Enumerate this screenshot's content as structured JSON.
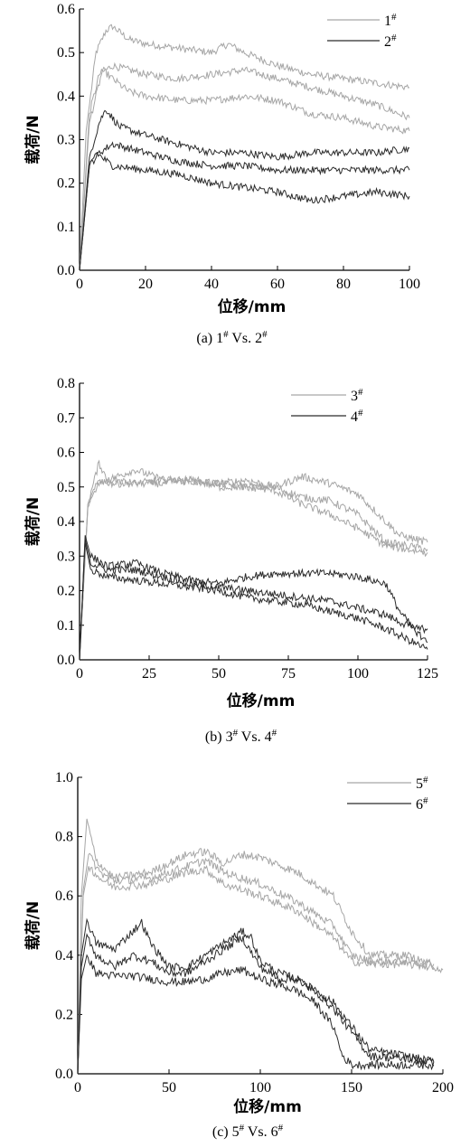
{
  "chart_data": [
    {
      "type": "line",
      "caption_main": "(a) 1",
      "caption_sup1": "#",
      "caption_mid": " Vs. 2",
      "caption_sup2": "#",
      "xlabel": "位移/mm",
      "ylabel": "载荷/N",
      "xlim": [
        0,
        100
      ],
      "ylim": [
        0,
        0.6
      ],
      "xticks": [
        "0",
        "20",
        "40",
        "60",
        "80",
        "100"
      ],
      "yticks": [
        "0.0",
        "0.1",
        "0.2",
        "0.3",
        "0.4",
        "0.5",
        "0.6"
      ],
      "legend_position": "top-right",
      "series": [
        {
          "name": "1",
          "name_sup": "#",
          "color": "#a6a6a6",
          "x": [
            0,
            2,
            5,
            8,
            10,
            15,
            20,
            30,
            40,
            45,
            50,
            60,
            70,
            80,
            90,
            100
          ],
          "y": [
            0,
            0.32,
            0.5,
            0.55,
            0.56,
            0.53,
            0.52,
            0.51,
            0.5,
            0.52,
            0.5,
            0.47,
            0.45,
            0.44,
            0.43,
            0.42
          ]
        },
        {
          "name": "1",
          "color": "#a6a6a6",
          "x": [
            0,
            3,
            6,
            10,
            15,
            20,
            30,
            40,
            50,
            60,
            70,
            80,
            90,
            100
          ],
          "y": [
            0,
            0.36,
            0.45,
            0.47,
            0.46,
            0.45,
            0.44,
            0.45,
            0.46,
            0.44,
            0.42,
            0.4,
            0.38,
            0.35
          ]
        },
        {
          "name": "1",
          "color": "#a6a6a6",
          "x": [
            0,
            3,
            7,
            10,
            15,
            20,
            30,
            40,
            50,
            60,
            70,
            80,
            90,
            100
          ],
          "y": [
            0,
            0.34,
            0.46,
            0.44,
            0.41,
            0.4,
            0.39,
            0.39,
            0.4,
            0.39,
            0.36,
            0.35,
            0.33,
            0.32
          ]
        },
        {
          "name": "2",
          "name_sup": "#",
          "color": "#2b2b2b",
          "x": [
            0,
            3,
            6,
            8,
            12,
            20,
            30,
            40,
            50,
            60,
            70,
            80,
            90,
            100
          ],
          "y": [
            0,
            0.26,
            0.34,
            0.37,
            0.33,
            0.31,
            0.29,
            0.27,
            0.27,
            0.26,
            0.27,
            0.27,
            0.27,
            0.28
          ]
        },
        {
          "name": "2",
          "color": "#2b2b2b",
          "x": [
            0,
            3,
            6,
            10,
            20,
            30,
            40,
            50,
            60,
            70,
            80,
            90,
            100
          ],
          "y": [
            0,
            0.24,
            0.27,
            0.29,
            0.27,
            0.25,
            0.24,
            0.24,
            0.23,
            0.23,
            0.23,
            0.23,
            0.23
          ]
        },
        {
          "name": "2",
          "color": "#2b2b2b",
          "x": [
            0,
            3,
            5,
            10,
            20,
            30,
            40,
            50,
            60,
            70,
            80,
            90,
            100
          ],
          "y": [
            0,
            0.24,
            0.27,
            0.24,
            0.23,
            0.22,
            0.2,
            0.19,
            0.18,
            0.16,
            0.17,
            0.18,
            0.17
          ]
        }
      ]
    },
    {
      "type": "line",
      "caption_main": "(b) 3",
      "caption_sup1": "#",
      "caption_mid": " Vs. 4",
      "caption_sup2": "#",
      "xlabel": "位移/mm",
      "ylabel": "载荷/N",
      "xlim": [
        0,
        125
      ],
      "ylim": [
        0,
        0.8
      ],
      "xticks": [
        "0",
        "25",
        "50",
        "75",
        "100",
        "125"
      ],
      "yticks": [
        "0.0",
        "0.1",
        "0.2",
        "0.3",
        "0.4",
        "0.5",
        "0.6",
        "0.7",
        "0.8"
      ],
      "legend_position": "top-right",
      "series": [
        {
          "name": "3",
          "name_sup": "#",
          "color": "#a6a6a6",
          "x": [
            0,
            3,
            7,
            10,
            20,
            30,
            50,
            60,
            70,
            80,
            90,
            100,
            110,
            115,
            125
          ],
          "y": [
            0,
            0.45,
            0.57,
            0.52,
            0.55,
            0.52,
            0.51,
            0.52,
            0.5,
            0.53,
            0.51,
            0.48,
            0.4,
            0.36,
            0.34
          ]
        },
        {
          "name": "3",
          "color": "#a6a6a6",
          "x": [
            0,
            3,
            7,
            12,
            20,
            30,
            40,
            50,
            60,
            70,
            80,
            90,
            100,
            110,
            125
          ],
          "y": [
            0,
            0.45,
            0.52,
            0.51,
            0.51,
            0.52,
            0.52,
            0.51,
            0.5,
            0.5,
            0.47,
            0.46,
            0.42,
            0.34,
            0.32
          ]
        },
        {
          "name": "3",
          "color": "#a6a6a6",
          "x": [
            0,
            3,
            7,
            12,
            20,
            30,
            40,
            50,
            60,
            70,
            80,
            90,
            100,
            110,
            125
          ],
          "y": [
            0,
            0.44,
            0.51,
            0.52,
            0.51,
            0.51,
            0.52,
            0.5,
            0.5,
            0.49,
            0.45,
            0.42,
            0.38,
            0.33,
            0.31
          ]
        },
        {
          "name": "4",
          "name_sup": "#",
          "color": "#2b2b2b",
          "x": [
            0,
            2,
            4,
            10,
            20,
            30,
            40,
            50,
            60,
            70,
            80,
            90,
            100,
            110,
            115,
            120,
            125
          ],
          "y": [
            0,
            0.36,
            0.3,
            0.27,
            0.28,
            0.25,
            0.23,
            0.22,
            0.24,
            0.25,
            0.25,
            0.25,
            0.24,
            0.22,
            0.14,
            0.09,
            0.09
          ]
        },
        {
          "name": "4",
          "color": "#2b2b2b",
          "x": [
            0,
            2,
            4,
            10,
            20,
            30,
            40,
            50,
            60,
            70,
            80,
            90,
            100,
            110,
            120,
            125
          ],
          "y": [
            0,
            0.35,
            0.28,
            0.26,
            0.26,
            0.24,
            0.22,
            0.21,
            0.2,
            0.19,
            0.18,
            0.17,
            0.15,
            0.13,
            0.09,
            0.05
          ]
        },
        {
          "name": "4",
          "color": "#2b2b2b",
          "x": [
            0,
            2,
            4,
            10,
            20,
            30,
            40,
            50,
            60,
            70,
            80,
            90,
            100,
            110,
            120,
            125
          ],
          "y": [
            0,
            0.34,
            0.26,
            0.24,
            0.23,
            0.22,
            0.21,
            0.2,
            0.18,
            0.17,
            0.16,
            0.14,
            0.12,
            0.09,
            0.05,
            0.03
          ]
        }
      ]
    },
    {
      "type": "line",
      "caption_main": "(c) 5",
      "caption_sup1": "#",
      "caption_mid": " Vs. 6",
      "caption_sup2": "#",
      "xlabel": "位移/mm",
      "ylabel": "载荷/N",
      "xlim": [
        0,
        200
      ],
      "ylim": [
        0,
        1.0
      ],
      "xticks": [
        "0",
        "50",
        "100",
        "150",
        "200"
      ],
      "yticks": [
        "0.0",
        "0.2",
        "0.4",
        "0.6",
        "0.8",
        "1.0"
      ],
      "legend_position": "top-right",
      "series": [
        {
          "name": "5",
          "name_sup": "#",
          "color": "#a6a6a6",
          "x": [
            0,
            2,
            5,
            10,
            20,
            40,
            60,
            70,
            80,
            90,
            100,
            120,
            140,
            150,
            160,
            180,
            200
          ],
          "y": [
            0,
            0.6,
            0.86,
            0.72,
            0.66,
            0.68,
            0.74,
            0.75,
            0.71,
            0.74,
            0.73,
            0.68,
            0.6,
            0.48,
            0.4,
            0.4,
            0.35
          ]
        },
        {
          "name": "5",
          "color": "#a6a6a6",
          "x": [
            0,
            3,
            6,
            12,
            20,
            40,
            60,
            70,
            80,
            100,
            120,
            140,
            150,
            160,
            180,
            195
          ],
          "y": [
            0,
            0.62,
            0.74,
            0.68,
            0.65,
            0.66,
            0.7,
            0.72,
            0.68,
            0.64,
            0.58,
            0.5,
            0.4,
            0.38,
            0.38,
            0.37
          ]
        },
        {
          "name": "5",
          "color": "#a6a6a6",
          "x": [
            0,
            3,
            6,
            12,
            20,
            40,
            60,
            70,
            80,
            100,
            120,
            140,
            150,
            160,
            180,
            195
          ],
          "y": [
            0,
            0.6,
            0.7,
            0.66,
            0.63,
            0.64,
            0.68,
            0.69,
            0.64,
            0.6,
            0.55,
            0.46,
            0.38,
            0.37,
            0.37,
            0.36
          ]
        },
        {
          "name": "6",
          "name_sup": "#",
          "color": "#2b2b2b",
          "x": [
            0,
            2,
            5,
            10,
            20,
            30,
            35,
            40,
            50,
            60,
            70,
            80,
            90,
            95,
            100,
            110,
            120,
            130,
            140,
            150,
            160,
            180,
            195
          ],
          "y": [
            0,
            0.4,
            0.52,
            0.44,
            0.42,
            0.48,
            0.51,
            0.44,
            0.36,
            0.36,
            0.4,
            0.44,
            0.48,
            0.46,
            0.38,
            0.34,
            0.32,
            0.28,
            0.24,
            0.16,
            0.08,
            0.06,
            0.04
          ]
        },
        {
          "name": "6",
          "color": "#2b2b2b",
          "x": [
            0,
            2,
            5,
            10,
            20,
            30,
            40,
            50,
            60,
            70,
            80,
            90,
            100,
            110,
            120,
            130,
            140,
            150,
            160,
            180,
            195
          ],
          "y": [
            0,
            0.36,
            0.47,
            0.4,
            0.36,
            0.4,
            0.38,
            0.34,
            0.34,
            0.38,
            0.42,
            0.46,
            0.36,
            0.32,
            0.32,
            0.28,
            0.22,
            0.14,
            0.06,
            0.05,
            0.04
          ]
        },
        {
          "name": "6",
          "color": "#2b2b2b",
          "x": [
            0,
            2,
            5,
            10,
            20,
            30,
            40,
            50,
            60,
            70,
            80,
            90,
            100,
            110,
            120,
            130,
            140,
            145,
            150,
            160,
            180,
            195
          ],
          "y": [
            0,
            0.32,
            0.4,
            0.34,
            0.33,
            0.33,
            0.32,
            0.31,
            0.31,
            0.32,
            0.34,
            0.35,
            0.32,
            0.3,
            0.28,
            0.24,
            0.16,
            0.06,
            0.03,
            0.03,
            0.03,
            0.03
          ]
        }
      ]
    }
  ]
}
